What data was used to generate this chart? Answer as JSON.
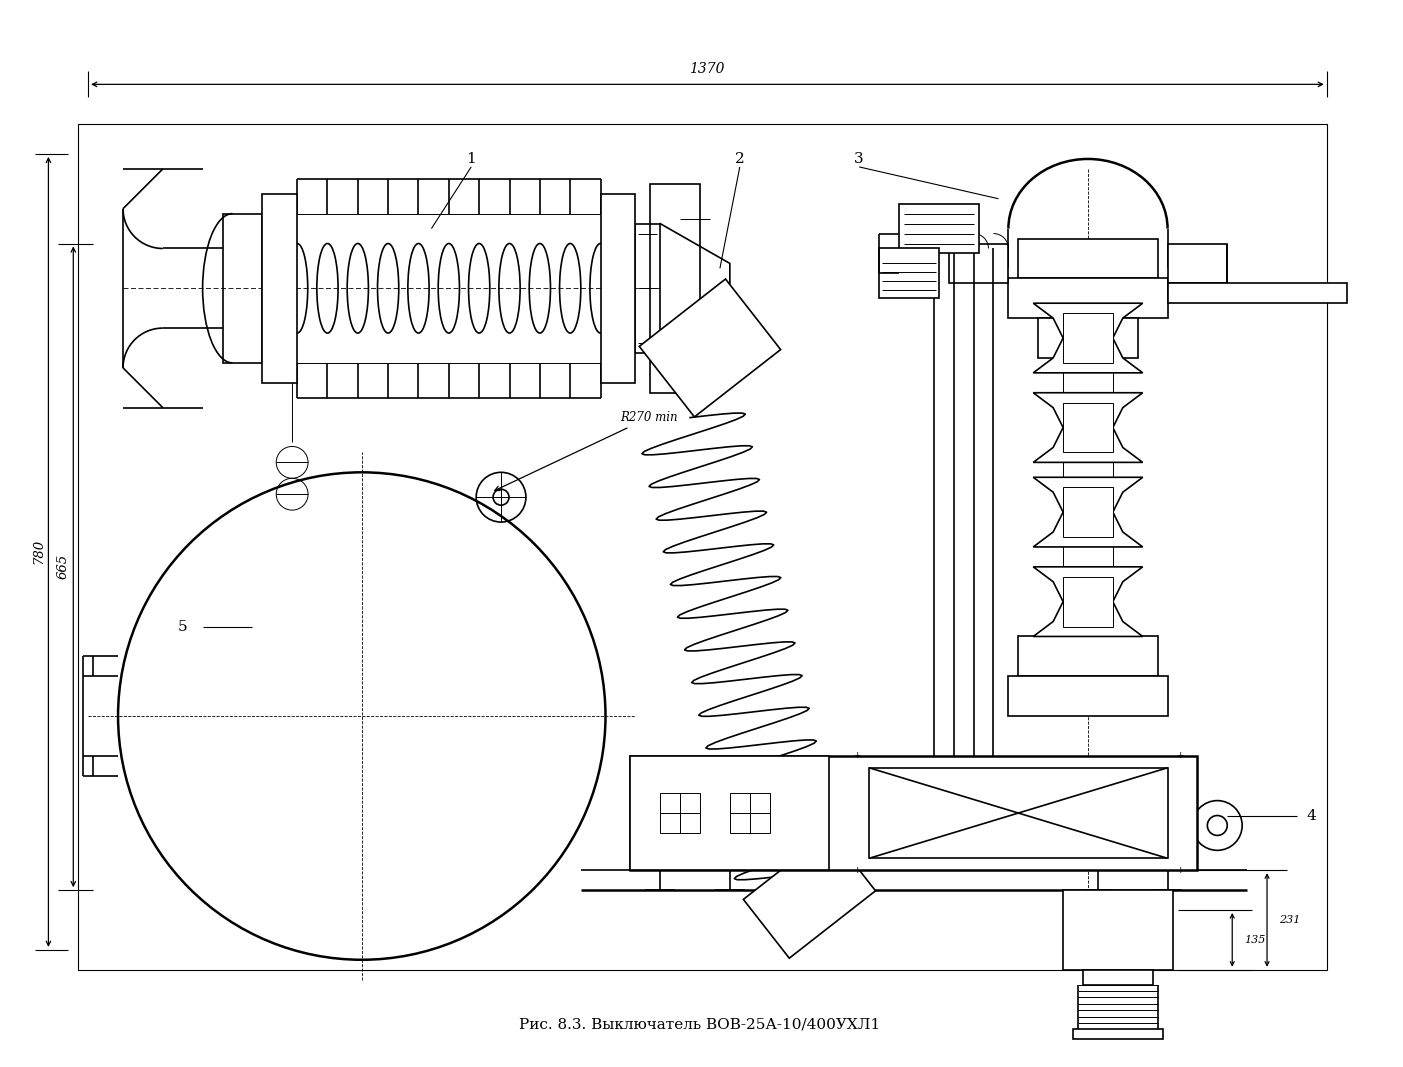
{
  "title": "Рис. 8.3. Выключатель ВОВ-25А-10/400УХЛ1",
  "bg_color": "#ffffff",
  "line_color": "#000000",
  "dim_1370": "1370",
  "dim_780": "780",
  "dim_665": "665",
  "dim_135": "135",
  "dim_231": "231",
  "dim_R270": "R270 min",
  "label_1": "1",
  "label_2": "2",
  "label_3": "3",
  "label_4": "4",
  "label_5": "5",
  "figsize": [
    14.03,
    10.67
  ],
  "dpi": 100
}
